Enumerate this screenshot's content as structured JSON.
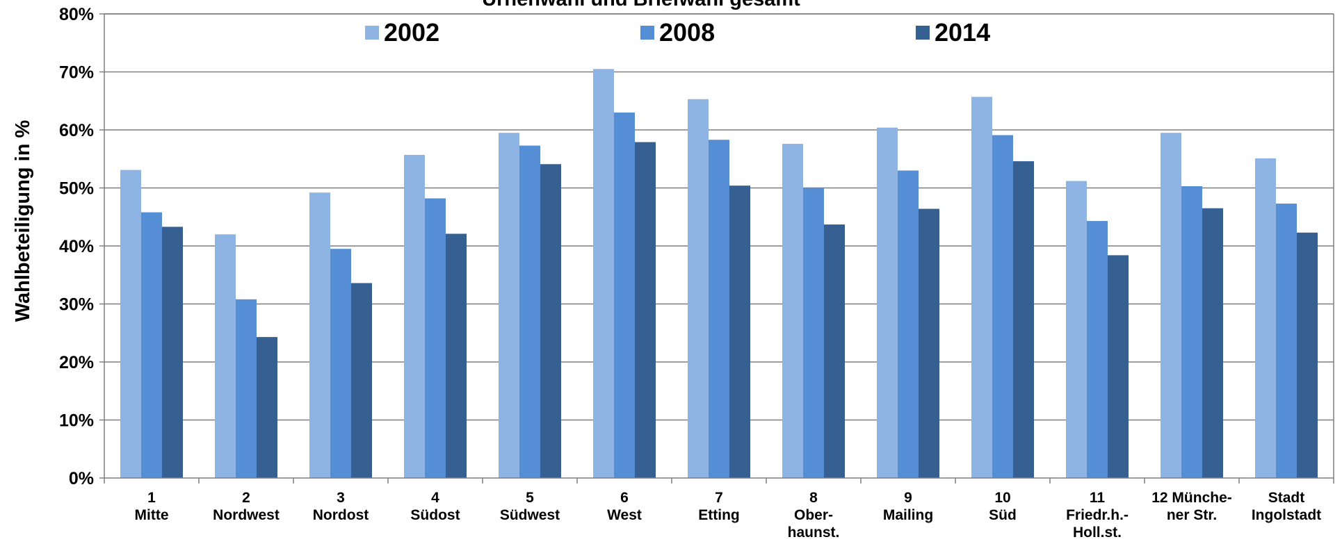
{
  "chart_data": {
    "type": "bar",
    "title": "Urnenwahl und Briefwahl gesamt",
    "xlabel": "",
    "ylabel": "Wahlbeteiligung in %",
    "ylim": [
      0,
      80
    ],
    "y_ticks": [
      "0%",
      "10%",
      "20%",
      "30%",
      "40%",
      "50%",
      "60%",
      "70%",
      "80%"
    ],
    "grid": true,
    "legend_position": "top",
    "categories": [
      [
        "1",
        "Mitte"
      ],
      [
        "2",
        "Nordwest"
      ],
      [
        "3",
        "Nordost"
      ],
      [
        "4",
        "Südost"
      ],
      [
        "5",
        "Südwest"
      ],
      [
        "6",
        "West"
      ],
      [
        "7",
        "Etting"
      ],
      [
        "8",
        "Ober-",
        "haunst."
      ],
      [
        "9",
        "Mailing"
      ],
      [
        "10",
        "Süd"
      ],
      [
        "11",
        "Friedr.h.-",
        "Holl.st."
      ],
      [
        "12 Münche-",
        "ner Str."
      ],
      [
        "Stadt",
        "Ingolstadt"
      ]
    ],
    "series": [
      {
        "name": "2002",
        "color": "#8EB4E3",
        "values": [
          53.1,
          42.0,
          49.2,
          55.7,
          59.5,
          70.5,
          65.3,
          57.6,
          60.4,
          65.7,
          51.2,
          59.5,
          55.1
        ]
      },
      {
        "name": "2008",
        "color": "#558ED5",
        "values": [
          45.8,
          30.8,
          39.5,
          48.2,
          57.3,
          63.0,
          58.3,
          50.0,
          53.0,
          59.1,
          44.3,
          50.3,
          47.3
        ]
      },
      {
        "name": "2014",
        "color": "#366092",
        "values": [
          43.3,
          24.3,
          33.6,
          42.1,
          54.1,
          57.9,
          50.4,
          43.7,
          46.4,
          54.6,
          38.4,
          46.5,
          42.3
        ]
      }
    ]
  }
}
